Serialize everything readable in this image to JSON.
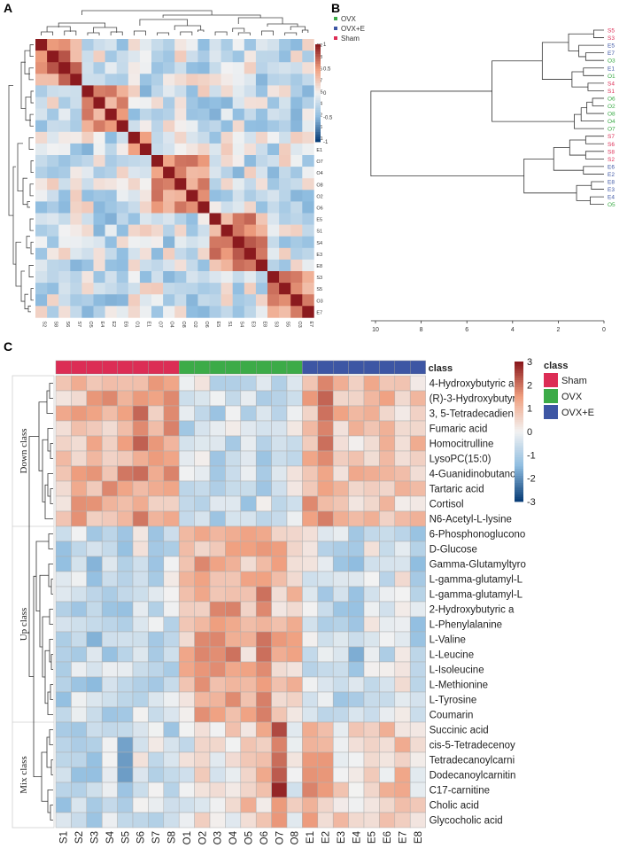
{
  "colors": {
    "sham": "#dc2d55",
    "ovx": "#3cab48",
    "ovxe": "#3d56a4",
    "low": "#0a3e78",
    "mid": "#f2f2f2",
    "high": "#8b1a1e"
  },
  "chart_data": [
    {
      "panel": "A",
      "type": "heatmap",
      "title": "",
      "samples": [
        "S2",
        "S8",
        "S6",
        "S7",
        "O5",
        "E4",
        "E2",
        "E6",
        "O1",
        "E1",
        "O7",
        "O4",
        "O8",
        "O2",
        "O6",
        "E5",
        "S1",
        "S4",
        "E3",
        "E8",
        "S3",
        "S5",
        "O3",
        "E7"
      ],
      "scale_ticks": [
        "1",
        "0.5",
        "0",
        "-0.5",
        "-1"
      ],
      "scale_range": [
        -1,
        1
      ]
    },
    {
      "panel": "B",
      "type": "dendrogram",
      "legend": [
        {
          "label": "OVX",
          "group": "ovx"
        },
        {
          "label": "OVX+E",
          "group": "ovxe"
        },
        {
          "label": "Sham",
          "group": "sham"
        }
      ],
      "leaves": [
        {
          "label": "S5",
          "group": "sham"
        },
        {
          "label": "S3",
          "group": "sham"
        },
        {
          "label": "E5",
          "group": "ovxe"
        },
        {
          "label": "E7",
          "group": "ovxe"
        },
        {
          "label": "O3",
          "group": "ovx"
        },
        {
          "label": "E1",
          "group": "ovxe"
        },
        {
          "label": "O1",
          "group": "ovx"
        },
        {
          "label": "S4",
          "group": "sham"
        },
        {
          "label": "S1",
          "group": "sham"
        },
        {
          "label": "O6",
          "group": "ovx"
        },
        {
          "label": "O2",
          "group": "ovx"
        },
        {
          "label": "O8",
          "group": "ovx"
        },
        {
          "label": "O4",
          "group": "ovx"
        },
        {
          "label": "O7",
          "group": "ovx"
        },
        {
          "label": "S7",
          "group": "sham"
        },
        {
          "label": "S6",
          "group": "sham"
        },
        {
          "label": "S8",
          "group": "sham"
        },
        {
          "label": "S2",
          "group": "sham"
        },
        {
          "label": "E6",
          "group": "ovxe"
        },
        {
          "label": "E2",
          "group": "ovxe"
        },
        {
          "label": "E8",
          "group": "ovxe"
        },
        {
          "label": "E3",
          "group": "ovxe"
        },
        {
          "label": "E4",
          "group": "ovxe"
        },
        {
          "label": "O5",
          "group": "ovx"
        }
      ],
      "x_ticks": [
        "10",
        "8",
        "6",
        "4",
        "2",
        "0"
      ],
      "x_range": [
        10,
        0
      ]
    },
    {
      "panel": "C",
      "type": "heatmap",
      "columns": [
        "S1",
        "S2",
        "S3",
        "S4",
        "S5",
        "S6",
        "S7",
        "S8",
        "O1",
        "O2",
        "O3",
        "O4",
        "O5",
        "O6",
        "O7",
        "O8",
        "E1",
        "E2",
        "E3",
        "E4",
        "E5",
        "E6",
        "E7",
        "E8"
      ],
      "column_groups": [
        "sham",
        "sham",
        "sham",
        "sham",
        "sham",
        "sham",
        "sham",
        "sham",
        "ovx",
        "ovx",
        "ovx",
        "ovx",
        "ovx",
        "ovx",
        "ovx",
        "ovx",
        "ovxe",
        "ovxe",
        "ovxe",
        "ovxe",
        "ovxe",
        "ovxe",
        "ovxe",
        "ovxe"
      ],
      "rows": [
        "4-Hydroxybutyric a",
        "(R)-3-Hydroxybutyr",
        "3, 5-Tetradecadien",
        "Fumaric acid",
        "Homocitrulline",
        "LysoPC(15:0)",
        "4-Guanidinobutanoi",
        "Tartaric acid",
        "Cortisol",
        "N6-Acetyl-L-lysine",
        "6-Phosphonoglucono",
        "D-Glucose",
        "Gamma-Glutamyltyro",
        "L-gamma-glutamyl-L",
        "L-gamma-glutamyl-L",
        "2-Hydroxybutyric a",
        "L-Phenylalanine",
        "L-Valine",
        "L-Leucine",
        "L-Isoleucine",
        "L-Methionine",
        "L-Tyrosine",
        "Coumarin",
        "Succinic acid",
        "cis-5-Tetradecenoy",
        "Tetradecanoylcarni",
        "Dodecanoylcarnitin",
        "C17-carnitine",
        "Cholic acid",
        "Glycocholic acid"
      ],
      "row_classes": [
        {
          "label": "Down class",
          "start": 0,
          "end": 9
        },
        {
          "label": "Up class",
          "start": 10,
          "end": 22
        },
        {
          "label": "Mix class",
          "start": 23,
          "end": 29
        }
      ],
      "class_header": "class",
      "scale_ticks": [
        "3",
        "2",
        "1",
        "0",
        "-1",
        "-2",
        "-3"
      ],
      "scale_range": [
        -3,
        3
      ],
      "legend_title": "class",
      "legend": [
        {
          "label": "Sham",
          "group": "sham"
        },
        {
          "label": "OVX",
          "group": "ovx"
        },
        {
          "label": "OVX+E",
          "group": "ovxe"
        }
      ]
    }
  ],
  "panel_labels": {
    "a": "A",
    "b": "B",
    "c": "C"
  }
}
